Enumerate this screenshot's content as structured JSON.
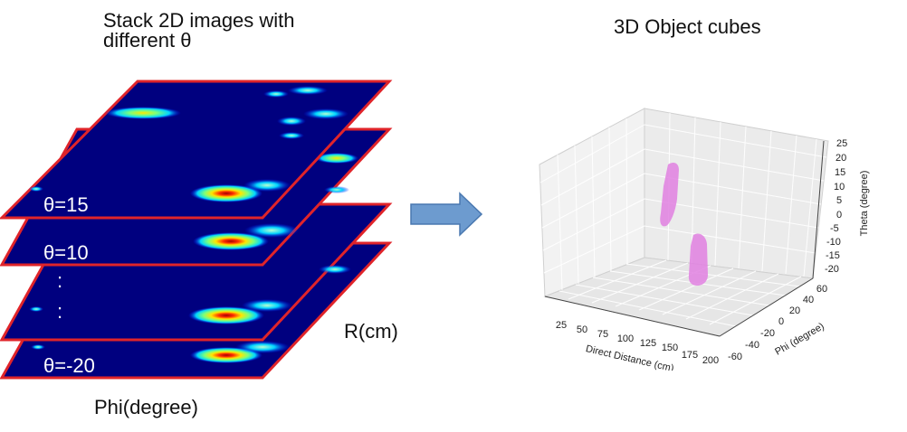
{
  "left": {
    "title_line1": "Stack 2D images with",
    "title_line2": "different θ",
    "layers": [
      {
        "label": "θ=15"
      },
      {
        "label": "θ=10"
      },
      {
        "label": ""
      },
      {
        "label": "θ=-20"
      }
    ],
    "axis_r": "R(cm)",
    "axis_phi": "Phi(degree)",
    "ellipsis": ":",
    "heatmap_colors": [
      "#00007f",
      "#0010ff",
      "#00d4ff",
      "#7dff7a",
      "#ffe600",
      "#ff3000",
      "#a00000"
    ],
    "border_color": "#e0242a"
  },
  "arrow": {
    "color": "#6d9bcf"
  },
  "right": {
    "title": "3D Object cubes",
    "object_color": "#e080e0",
    "chart_data": {
      "type": "scatter",
      "xlabel": "Direct Distance (cm)",
      "ylabel": "Phi (degree)",
      "zlabel": "Theta (degree)",
      "xticks": [
        25,
        50,
        75,
        100,
        125,
        150,
        175,
        200
      ],
      "yticks": [
        -60,
        -40,
        -20,
        0,
        20,
        40,
        60
      ],
      "zticks": [
        25,
        20,
        15,
        10,
        5,
        0,
        -5,
        -10,
        -15,
        -20
      ],
      "xlim": [
        0,
        200
      ],
      "ylim": [
        -60,
        60
      ],
      "zlim": [
        -20,
        25
      ],
      "grid": true
    }
  }
}
